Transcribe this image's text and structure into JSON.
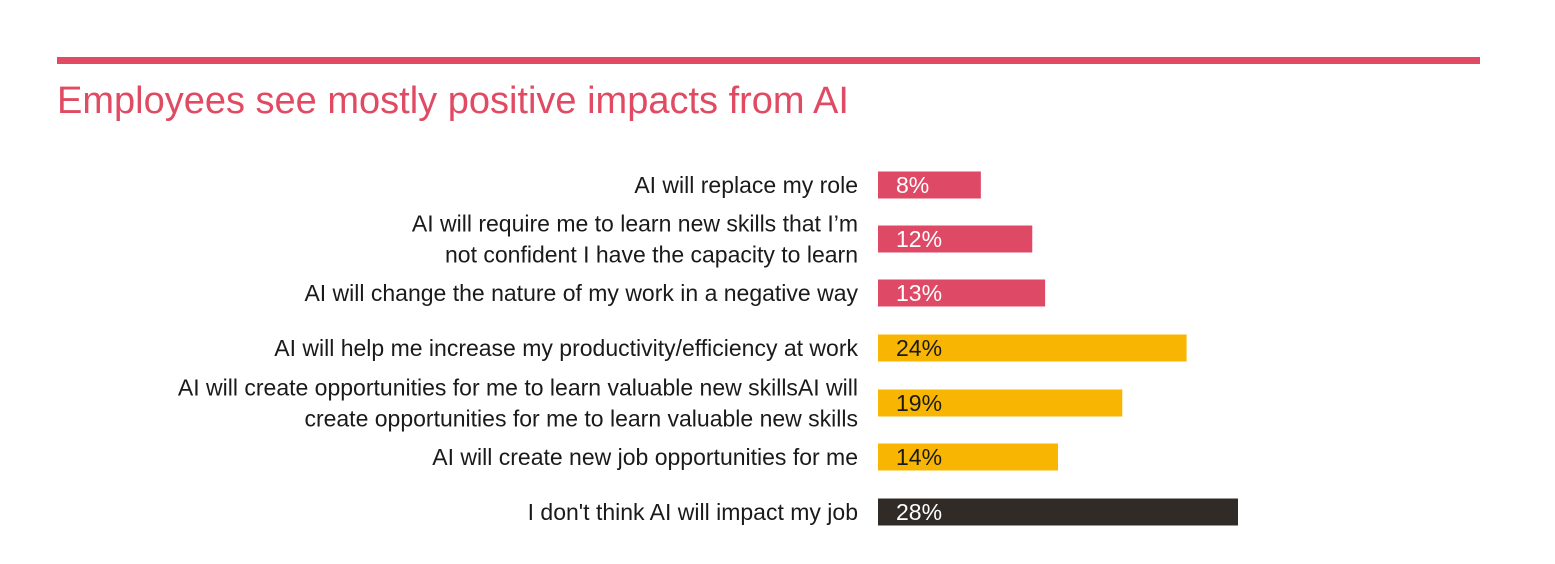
{
  "title": "Employees see mostly positive impacts from AI",
  "colors": {
    "accent": "#e04a62",
    "negative": "#de4a66",
    "positive": "#f8b602",
    "neutral": "#302b27",
    "label_light": "#ffffff",
    "label_dark": "#1a1a1a"
  },
  "chart_data": {
    "type": "bar",
    "orientation": "horizontal",
    "title": "Employees see mostly positive impacts from AI",
    "value_suffix": "%",
    "categories": [
      [
        "AI will replace my role"
      ],
      [
        "AI will require me to learn new skills that I’m",
        "not confident I have the capacity to learn"
      ],
      [
        "AI will change the nature of my work in a negative way"
      ],
      [
        "AI will help me increase my productivity/efficiency at work"
      ],
      [
        "AI will create opportunities for me to learn valuable new skillsAI will",
        "create opportunities for me to learn valuable new skills"
      ],
      [
        "AI will create new job opportunities for me"
      ],
      [
        "I don't think AI will impact my job"
      ]
    ],
    "values": [
      8,
      12,
      13,
      24,
      19,
      14,
      28
    ],
    "value_labels": [
      "8%",
      "12%",
      "13%",
      "24%",
      "19%",
      "14%",
      "28%"
    ],
    "groups": [
      "negative",
      "negative",
      "negative",
      "positive",
      "positive",
      "positive",
      "neutral"
    ],
    "xlim": [
      0,
      28
    ],
    "grid": false,
    "legend": "none"
  }
}
